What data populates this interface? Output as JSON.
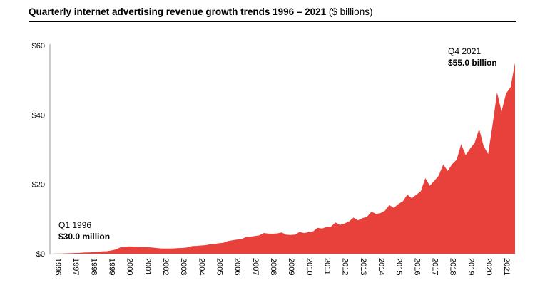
{
  "chart_data": {
    "type": "area",
    "title": "Quarterly internet advertising revenue growth trends 1996 – 2021",
    "title_unit": "($ billions)",
    "xlabel": "",
    "ylabel": "",
    "ylim": [
      0,
      60
    ],
    "y_ticks": [
      "$0",
      "$20",
      "$40",
      "$60"
    ],
    "y_tick_values": [
      0,
      20,
      40,
      60
    ],
    "x_ticks": [
      "1996",
      "1997",
      "1998",
      "1999",
      "2000",
      "2001",
      "2002",
      "2003",
      "2004",
      "2005",
      "2006",
      "2007",
      "2008",
      "2009",
      "2010",
      "2011",
      "2012",
      "2013",
      "2014",
      "2015",
      "2016",
      "2017",
      "2018",
      "2019",
      "2020",
      "2021"
    ],
    "grid": false,
    "color": "#e8403a",
    "values": [
      0.03,
      0.05,
      0.07,
      0.11,
      0.13,
      0.21,
      0.23,
      0.33,
      0.35,
      0.42,
      0.49,
      0.66,
      0.69,
      0.93,
      1.22,
      1.78,
      1.95,
      2.12,
      1.99,
      2.02,
      1.87,
      1.87,
      1.79,
      1.64,
      1.52,
      1.47,
      1.5,
      1.53,
      1.63,
      1.66,
      1.79,
      2.18,
      2.23,
      2.37,
      2.45,
      2.69,
      2.8,
      2.99,
      3.14,
      3.61,
      3.85,
      4.06,
      4.18,
      4.79,
      4.9,
      5.09,
      5.27,
      5.95,
      5.77,
      5.75,
      5.84,
      6.1,
      5.47,
      5.39,
      5.49,
      6.26,
      5.94,
      6.18,
      6.43,
      7.45,
      7.26,
      7.68,
      7.82,
      8.97,
      8.31,
      8.69,
      9.26,
      10.39,
      9.6,
      10.26,
      10.61,
      12.13,
      11.44,
      11.7,
      12.4,
      14.0,
      13.2,
      14.3,
      15.1,
      17.0,
      16.0,
      17.0,
      18.0,
      21.8,
      19.6,
      21.0,
      22.5,
      25.7,
      23.9,
      25.8,
      27.1,
      31.6,
      28.4,
      30.3,
      32.0,
      36.0,
      31.0,
      28.7,
      37.2,
      46.5,
      41.0,
      46.2,
      48.0,
      55.0
    ],
    "annotations": [
      {
        "label": "Q1 1996",
        "value_label": "$30.0 million"
      },
      {
        "label": "Q4 2021",
        "value_label": "$55.0 billion"
      }
    ]
  }
}
